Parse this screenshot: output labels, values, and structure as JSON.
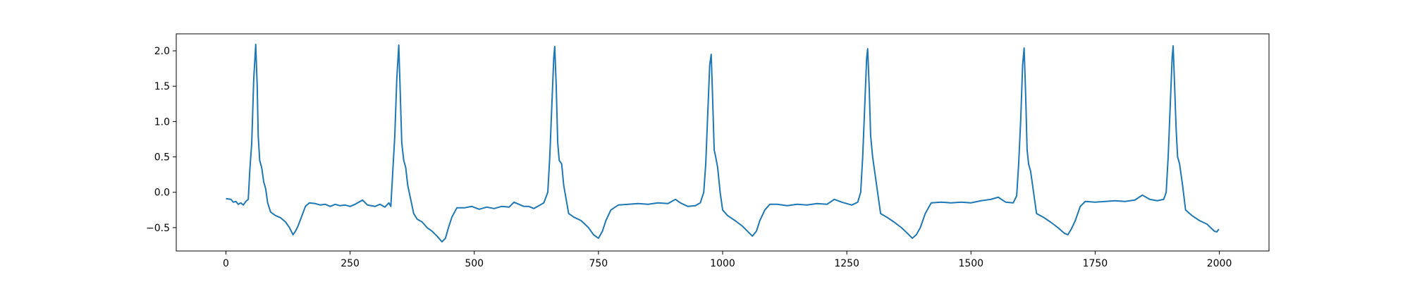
{
  "chart_data": {
    "type": "line",
    "x": [
      0,
      10,
      15,
      20,
      25,
      30,
      35,
      40,
      45,
      48,
      52,
      56,
      60,
      63,
      65,
      68,
      72,
      76,
      80,
      84,
      90,
      100,
      110,
      120,
      128,
      135,
      140,
      145,
      152,
      160,
      168,
      180,
      190,
      200,
      210,
      220,
      230,
      240,
      250,
      260,
      275,
      285,
      300,
      310,
      320,
      328,
      332,
      336,
      340,
      344,
      348,
      351,
      354,
      358,
      362,
      366,
      372,
      378,
      385,
      395,
      405,
      415,
      425,
      435,
      442,
      448,
      455,
      465,
      480,
      495,
      510,
      525,
      540,
      555,
      570,
      580,
      590,
      600,
      610,
      620,
      640,
      648,
      652,
      656,
      660,
      662,
      665,
      668,
      671,
      676,
      680,
      685,
      690,
      700,
      715,
      730,
      740,
      750,
      758,
      765,
      775,
      790,
      810,
      830,
      850,
      870,
      890,
      905,
      915,
      930,
      945,
      955,
      962,
      966,
      970,
      974,
      977,
      980,
      983,
      986,
      990,
      995,
      1000,
      1010,
      1025,
      1040,
      1050,
      1060,
      1068,
      1075,
      1085,
      1095,
      1110,
      1130,
      1150,
      1170,
      1190,
      1210,
      1225,
      1240,
      1260,
      1272,
      1278,
      1282,
      1286,
      1290,
      1292,
      1295,
      1298,
      1302,
      1306,
      1312,
      1318,
      1330,
      1345,
      1360,
      1372,
      1382,
      1390,
      1398,
      1408,
      1420,
      1440,
      1460,
      1480,
      1500,
      1520,
      1540,
      1555,
      1570,
      1585,
      1592,
      1596,
      1600,
      1604,
      1607,
      1610,
      1613,
      1616,
      1620,
      1626,
      1632,
      1645,
      1660,
      1675,
      1688,
      1695,
      1702,
      1710,
      1720,
      1730,
      1750,
      1770,
      1790,
      1810,
      1830,
      1845,
      1860,
      1875,
      1888,
      1893,
      1897,
      1901,
      1905,
      1907,
      1910,
      1913,
      1916,
      1920,
      1926,
      1932,
      1945,
      1960,
      1975,
      1990,
      1995,
      1999
    ],
    "series": [
      {
        "color": "#1f77b4",
        "values": [
          -0.09,
          -0.1,
          -0.14,
          -0.13,
          -0.17,
          -0.15,
          -0.18,
          -0.13,
          -0.1,
          0.3,
          0.7,
          1.6,
          2.09,
          1.5,
          0.8,
          0.45,
          0.35,
          0.15,
          0.05,
          -0.15,
          -0.28,
          -0.33,
          -0.36,
          -0.42,
          -0.5,
          -0.6,
          -0.55,
          -0.48,
          -0.35,
          -0.2,
          -0.15,
          -0.16,
          -0.18,
          -0.17,
          -0.2,
          -0.17,
          -0.19,
          -0.18,
          -0.2,
          -0.17,
          -0.11,
          -0.18,
          -0.2,
          -0.17,
          -0.21,
          -0.15,
          -0.2,
          0.3,
          0.8,
          1.6,
          2.08,
          1.4,
          0.7,
          0.45,
          0.35,
          0.1,
          -0.1,
          -0.3,
          -0.38,
          -0.42,
          -0.5,
          -0.55,
          -0.62,
          -0.7,
          -0.65,
          -0.5,
          -0.35,
          -0.22,
          -0.22,
          -0.2,
          -0.24,
          -0.21,
          -0.23,
          -0.2,
          -0.21,
          -0.14,
          -0.17,
          -0.2,
          -0.2,
          -0.23,
          -0.15,
          0,
          0.5,
          1.2,
          1.9,
          2.06,
          1.5,
          0.7,
          0.45,
          0.4,
          0.1,
          -0.1,
          -0.3,
          -0.35,
          -0.4,
          -0.5,
          -0.6,
          -0.65,
          -0.55,
          -0.4,
          -0.25,
          -0.18,
          -0.17,
          -0.16,
          -0.17,
          -0.15,
          -0.16,
          -0.1,
          -0.15,
          -0.2,
          -0.19,
          -0.15,
          0,
          0.4,
          1.1,
          1.8,
          1.95,
          1.3,
          0.6,
          0.5,
          0.35,
          0,
          -0.25,
          -0.33,
          -0.4,
          -0.48,
          -0.55,
          -0.62,
          -0.55,
          -0.4,
          -0.25,
          -0.17,
          -0.17,
          -0.19,
          -0.17,
          -0.18,
          -0.16,
          -0.17,
          -0.1,
          -0.14,
          -0.18,
          -0.14,
          0,
          0.5,
          1.2,
          1.9,
          2.03,
          1.5,
          0.8,
          0.5,
          0.3,
          0,
          -0.3,
          -0.35,
          -0.42,
          -0.5,
          -0.58,
          -0.65,
          -0.6,
          -0.5,
          -0.3,
          -0.15,
          -0.14,
          -0.15,
          -0.14,
          -0.15,
          -0.12,
          -0.1,
          -0.07,
          -0.14,
          -0.15,
          -0.05,
          0.4,
          1,
          1.8,
          2.04,
          1.4,
          0.6,
          0.4,
          0.3,
          0,
          -0.3,
          -0.35,
          -0.42,
          -0.5,
          -0.58,
          -0.6,
          -0.52,
          -0.4,
          -0.2,
          -0.13,
          -0.14,
          -0.13,
          -0.12,
          -0.13,
          -0.11,
          -0.04,
          -0.1,
          -0.12,
          -0.1,
          0,
          0.5,
          1.2,
          1.9,
          2.07,
          1.5,
          0.9,
          0.5,
          0.4,
          0.1,
          -0.25,
          -0.33,
          -0.4,
          -0.45,
          -0.55,
          -0.56,
          -0.52
        ]
      }
    ],
    "xlim": [
      -100,
      2100
    ],
    "xticks": [
      0,
      250,
      500,
      750,
      1000,
      1250,
      1500,
      1750,
      2000
    ],
    "ylim": [
      -0.83,
      2.24
    ],
    "yticks": [
      {
        "value": -0.5,
        "label": "−0.5"
      },
      {
        "value": 0,
        "label": "0.0"
      },
      {
        "value": 0.5,
        "label": "0.5"
      },
      {
        "value": 1,
        "label": "1.0"
      },
      {
        "value": 1.5,
        "label": "1.5"
      },
      {
        "value": 2,
        "label": "2.0"
      }
    ],
    "grid": false
  }
}
